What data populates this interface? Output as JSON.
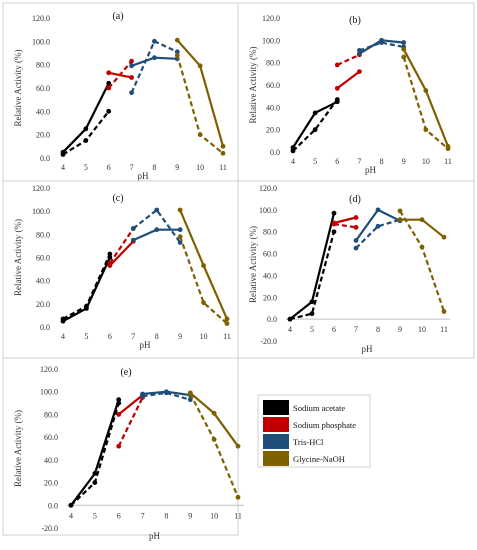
{
  "chart_data": [
    {
      "type": "line",
      "label": "(a)",
      "xlabel": "pH",
      "ylabel": "Relative Activity (%)",
      "xticks": [
        4,
        5,
        6,
        7,
        8,
        9,
        10,
        11
      ],
      "yticks": [
        "0.0",
        "20.0",
        "40.0",
        "60.0",
        "80.0",
        "100.0",
        "120.0"
      ],
      "ylim": [
        0,
        120
      ],
      "series": [
        {
          "name": "Sodium acetate",
          "color": "#000000",
          "style": "solid",
          "x": [
            4,
            5,
            6
          ],
          "y": [
            5,
            25,
            64
          ]
        },
        {
          "name": "Sodium acetate",
          "color": "#000000",
          "style": "dashed",
          "x": [
            4,
            5,
            6
          ],
          "y": [
            3,
            15,
            40
          ]
        },
        {
          "name": "Sodium phosphate",
          "color": "#c00000",
          "style": "solid",
          "x": [
            6,
            7
          ],
          "y": [
            73,
            69
          ]
        },
        {
          "name": "Sodium phosphate",
          "color": "#c00000",
          "style": "dashed",
          "x": [
            6,
            7
          ],
          "y": [
            60,
            83
          ]
        },
        {
          "name": "Tris-HCl",
          "color": "#1f4e79",
          "style": "solid",
          "x": [
            7,
            8,
            9
          ],
          "y": [
            79,
            86,
            85
          ]
        },
        {
          "name": "Tris-HCl",
          "color": "#1f4e79",
          "style": "dashed",
          "x": [
            7,
            8,
            9
          ],
          "y": [
            56,
            100,
            91
          ]
        },
        {
          "name": "Glycine-NaOH",
          "color": "#7f6000",
          "style": "solid",
          "x": [
            9,
            10,
            11
          ],
          "y": [
            101,
            79,
            10
          ]
        },
        {
          "name": "Glycine-NaOH",
          "color": "#7f6000",
          "style": "dashed",
          "x": [
            9,
            10,
            11
          ],
          "y": [
            88,
            20,
            4
          ]
        }
      ]
    },
    {
      "type": "line",
      "label": "(b)",
      "xlabel": "pH",
      "ylabel": "Relative Activity (%)",
      "xticks": [
        4,
        5,
        6,
        7,
        8,
        9,
        10,
        11
      ],
      "yticks": [
        "0.0",
        "20.0",
        "40.0",
        "60.0",
        "80.0",
        "100.0",
        "120.0"
      ],
      "ylim": [
        0,
        120
      ],
      "series": [
        {
          "name": "Sodium acetate",
          "color": "#000000",
          "style": "solid",
          "x": [
            4,
            5,
            6
          ],
          "y": [
            4,
            35,
            45
          ]
        },
        {
          "name": "Sodium acetate",
          "color": "#000000",
          "style": "dashed",
          "x": [
            4,
            5,
            6
          ],
          "y": [
            1,
            20,
            47
          ]
        },
        {
          "name": "Sodium phosphate",
          "color": "#c00000",
          "style": "solid",
          "x": [
            6,
            7
          ],
          "y": [
            57,
            72
          ]
        },
        {
          "name": "Sodium phosphate",
          "color": "#c00000",
          "style": "dashed",
          "x": [
            6,
            7
          ],
          "y": [
            78,
            87
          ]
        },
        {
          "name": "Tris-HCl",
          "color": "#1f4e79",
          "style": "solid",
          "x": [
            7,
            8,
            9
          ],
          "y": [
            88,
            100,
            98
          ]
        },
        {
          "name": "Tris-HCl",
          "color": "#1f4e79",
          "style": "dashed",
          "x": [
            7,
            8,
            9
          ],
          "y": [
            91,
            98,
            94
          ]
        },
        {
          "name": "Glycine-NaOH",
          "color": "#7f6000",
          "style": "solid",
          "x": [
            9,
            10,
            11
          ],
          "y": [
            92,
            55,
            5
          ]
        },
        {
          "name": "Glycine-NaOH",
          "color": "#7f6000",
          "style": "dashed",
          "x": [
            9,
            10,
            11
          ],
          "y": [
            85,
            20,
            3
          ]
        }
      ]
    },
    {
      "type": "line",
      "label": "(c)",
      "xlabel": "pH",
      "ylabel": "Relative Activity (%)",
      "xticks": [
        4,
        5,
        6,
        7,
        8,
        9,
        10,
        11
      ],
      "yticks": [
        "0.0",
        "20.0",
        "40.0",
        "60.0",
        "80.0",
        "100.0",
        "120.0"
      ],
      "ylim": [
        0,
        120
      ],
      "series": [
        {
          "name": "Sodium acetate",
          "color": "#000000",
          "style": "solid",
          "x": [
            4,
            5,
            6
          ],
          "y": [
            5,
            16,
            60
          ]
        },
        {
          "name": "Sodium acetate",
          "color": "#000000",
          "style": "dashed",
          "x": [
            4,
            5,
            6
          ],
          "y": [
            7,
            18,
            63
          ]
        },
        {
          "name": "Sodium phosphate",
          "color": "#c00000",
          "style": "solid",
          "x": [
            6,
            7
          ],
          "y": [
            53,
            74
          ]
        },
        {
          "name": "Sodium phosphate",
          "color": "#c00000",
          "style": "dashed",
          "x": [
            6,
            7
          ],
          "y": [
            55,
            85
          ]
        },
        {
          "name": "Tris-HCl",
          "color": "#1f4e79",
          "style": "solid",
          "x": [
            7,
            8,
            9
          ],
          "y": [
            75,
            84,
            84
          ]
        },
        {
          "name": "Tris-HCl",
          "color": "#1f4e79",
          "style": "dashed",
          "x": [
            7,
            8,
            9
          ],
          "y": [
            85,
            101,
            73
          ]
        },
        {
          "name": "Glycine-NaOH",
          "color": "#7f6000",
          "style": "solid",
          "x": [
            9,
            10,
            11
          ],
          "y": [
            101,
            53,
            7
          ]
        },
        {
          "name": "Glycine-NaOH",
          "color": "#7f6000",
          "style": "dashed",
          "x": [
            9,
            10,
            11
          ],
          "y": [
            78,
            21,
            3
          ]
        }
      ]
    },
    {
      "type": "line",
      "label": "(d)",
      "xlabel": "pH",
      "ylabel": "Relative Activity (%)",
      "xticks": [
        4,
        5,
        6,
        7,
        8,
        9,
        10,
        11
      ],
      "yticks": [
        "-20.0",
        "0.0",
        "20.0",
        "40.0",
        "60.0",
        "80.0",
        "100.0",
        "120.0"
      ],
      "ylim": [
        -20,
        120
      ],
      "series": [
        {
          "name": "Sodium acetate",
          "color": "#000000",
          "style": "solid",
          "x": [
            4,
            5,
            6
          ],
          "y": [
            0,
            16,
            97
          ]
        },
        {
          "name": "Sodium acetate",
          "color": "#000000",
          "style": "dashed",
          "x": [
            4,
            5,
            6
          ],
          "y": [
            0,
            5,
            80
          ]
        },
        {
          "name": "Sodium phosphate",
          "color": "#c00000",
          "style": "solid",
          "x": [
            6,
            7
          ],
          "y": [
            88,
            93
          ]
        },
        {
          "name": "Sodium phosphate",
          "color": "#c00000",
          "style": "dashed",
          "x": [
            6,
            7
          ],
          "y": [
            87,
            84
          ]
        },
        {
          "name": "Tris-HCl",
          "color": "#1f4e79",
          "style": "solid",
          "x": [
            7,
            8,
            9
          ],
          "y": [
            72,
            100,
            90
          ]
        },
        {
          "name": "Tris-HCl",
          "color": "#1f4e79",
          "style": "dashed",
          "x": [
            7,
            8,
            9
          ],
          "y": [
            65,
            85,
            91
          ]
        },
        {
          "name": "Glycine-NaOH",
          "color": "#7f6000",
          "style": "solid",
          "x": [
            9,
            10,
            11
          ],
          "y": [
            91,
            91,
            75
          ]
        },
        {
          "name": "Glycine-NaOH",
          "color": "#7f6000",
          "style": "dashed",
          "x": [
            9,
            10,
            11
          ],
          "y": [
            99,
            66,
            7
          ]
        }
      ]
    },
    {
      "type": "line",
      "label": "(e)",
      "xlabel": "pH",
      "ylabel": "Relative Activity (%)",
      "xticks": [
        4,
        5,
        6,
        7,
        8,
        9,
        10,
        11
      ],
      "yticks": [
        "-20.0",
        "0.0",
        "20.0",
        "40.0",
        "60.0",
        "80.0",
        "100.0",
        "120.0"
      ],
      "ylim": [
        -20,
        120
      ],
      "series": [
        {
          "name": "Sodium acetate",
          "color": "#000000",
          "style": "solid",
          "x": [
            4,
            5,
            6
          ],
          "y": [
            0,
            28,
            93
          ]
        },
        {
          "name": "Sodium acetate",
          "color": "#000000",
          "style": "dashed",
          "x": [
            4,
            5,
            6
          ],
          "y": [
            0,
            20,
            90
          ]
        },
        {
          "name": "Sodium phosphate",
          "color": "#c00000",
          "style": "solid",
          "x": [
            6,
            7
          ],
          "y": [
            80,
            97
          ]
        },
        {
          "name": "Sodium phosphate",
          "color": "#c00000",
          "style": "dashed",
          "x": [
            6,
            7
          ],
          "y": [
            52,
            95
          ]
        },
        {
          "name": "Tris-HCl",
          "color": "#1f4e79",
          "style": "solid",
          "x": [
            7,
            8,
            9
          ],
          "y": [
            98,
            100,
            97
          ]
        },
        {
          "name": "Tris-HCl",
          "color": "#1f4e79",
          "style": "dashed",
          "x": [
            7,
            8,
            9
          ],
          "y": [
            96,
            99,
            93
          ]
        },
        {
          "name": "Glycine-NaOH",
          "color": "#7f6000",
          "style": "solid",
          "x": [
            9,
            10,
            11
          ],
          "y": [
            99,
            81,
            52
          ]
        },
        {
          "name": "Glycine-NaOH",
          "color": "#7f6000",
          "style": "dashed",
          "x": [
            9,
            10,
            11
          ],
          "y": [
            98,
            58,
            7
          ]
        }
      ]
    }
  ],
  "legend": [
    {
      "label": "Sodium acetate",
      "color": "#000000"
    },
    {
      "label": "Sodium phosphate",
      "color": "#c00000"
    },
    {
      "label": "Tris-HCl",
      "color": "#1f4e79"
    },
    {
      "label": "Glycine-NaOH",
      "color": "#7f6000"
    }
  ]
}
